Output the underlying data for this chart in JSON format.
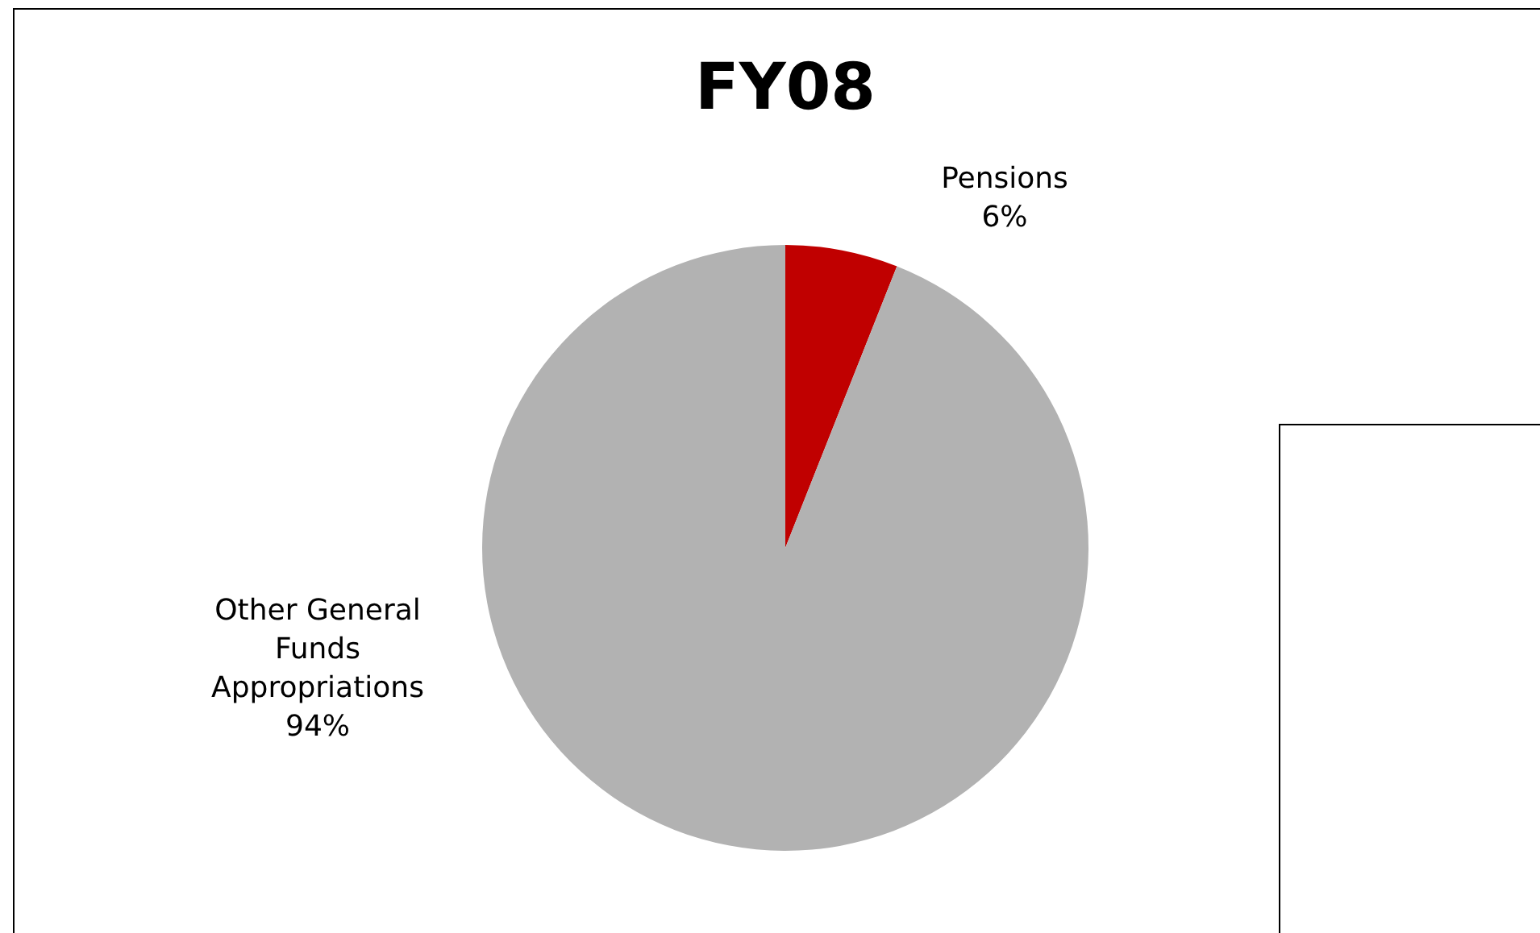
{
  "chart_data": {
    "type": "pie",
    "title": "FY08",
    "categories": [
      "Pensions",
      "Other General Funds Appropriations"
    ],
    "values": [
      6,
      94
    ],
    "colors": [
      "#c00000",
      "#b2b2b2"
    ],
    "value_labels": [
      "6%",
      "94%"
    ],
    "legend": false
  }
}
